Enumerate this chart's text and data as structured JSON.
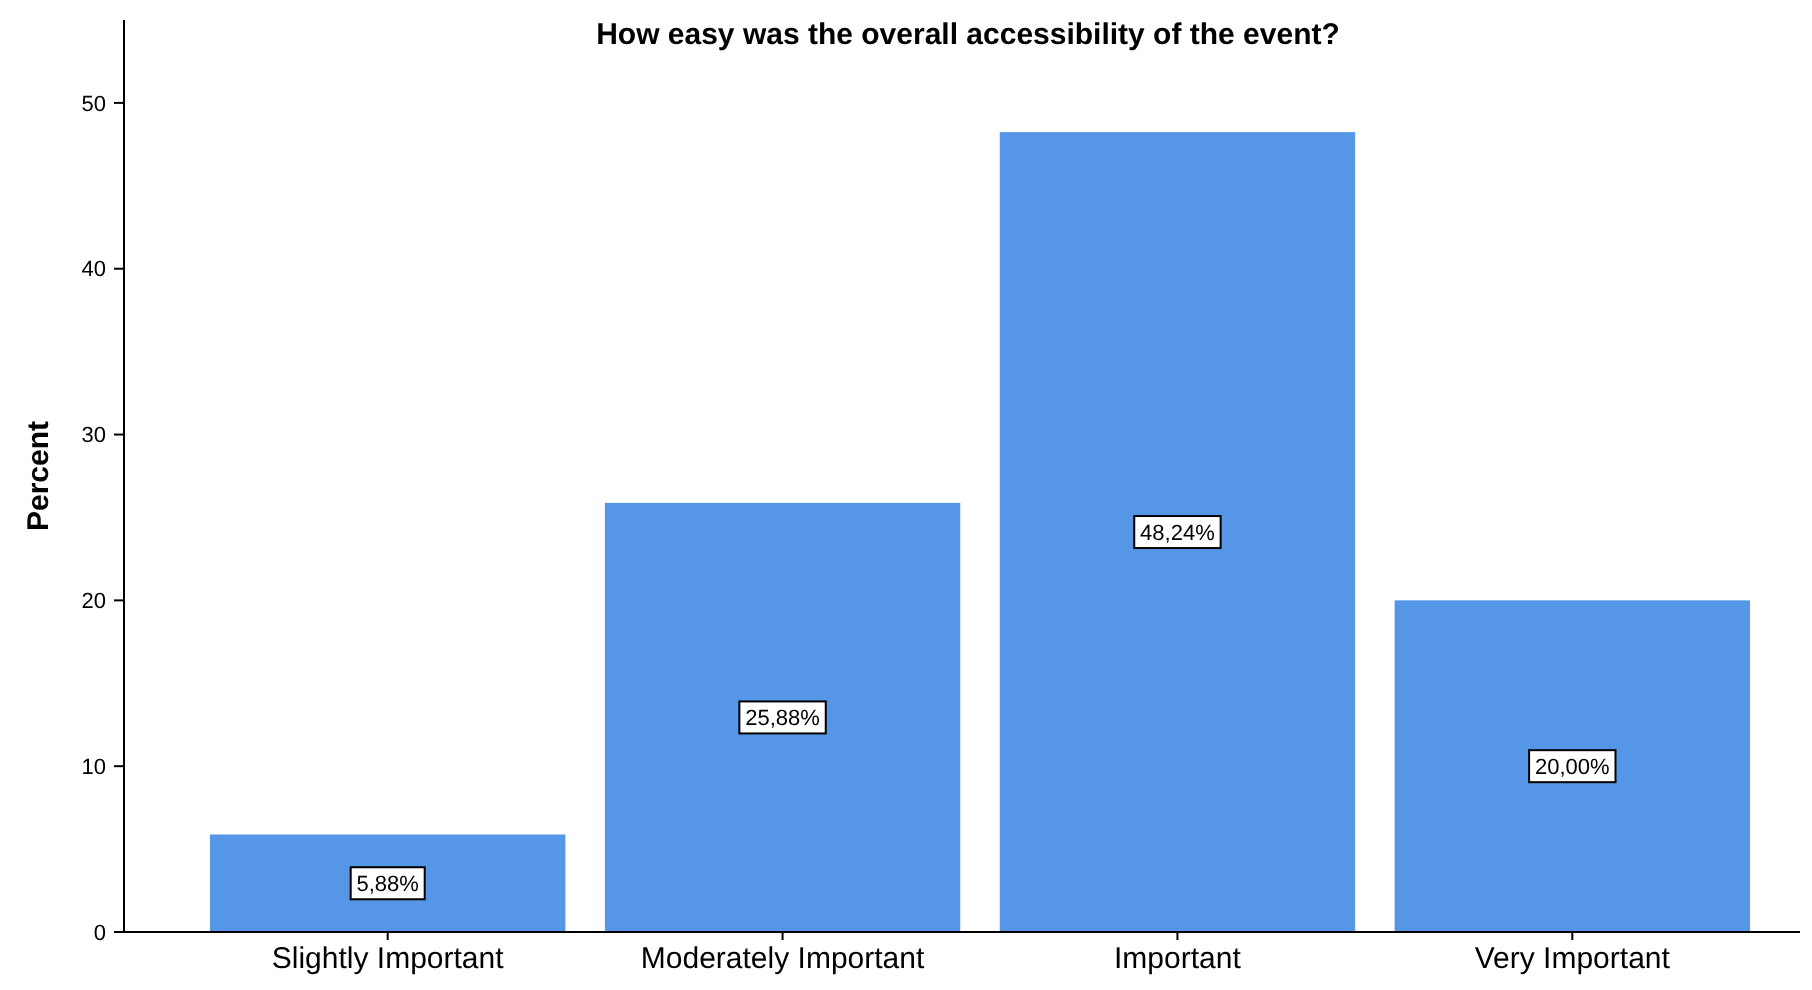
{
  "chart_data": {
    "type": "bar",
    "title": "How easy was the overall accessibility of the event?",
    "ylabel": "Percent",
    "categories": [
      "Slightly Important",
      "Moderately Important",
      "Important",
      "Very Important"
    ],
    "values": [
      5.88,
      25.88,
      48.24,
      20.0
    ],
    "value_labels": [
      "5,88%",
      "25,88%",
      "48,24%",
      "20,00%"
    ],
    "color": "#5596e6",
    "ylim": [
      0,
      55
    ],
    "yticks": [
      0,
      10,
      20,
      30,
      40,
      50
    ],
    "grid": false
  }
}
